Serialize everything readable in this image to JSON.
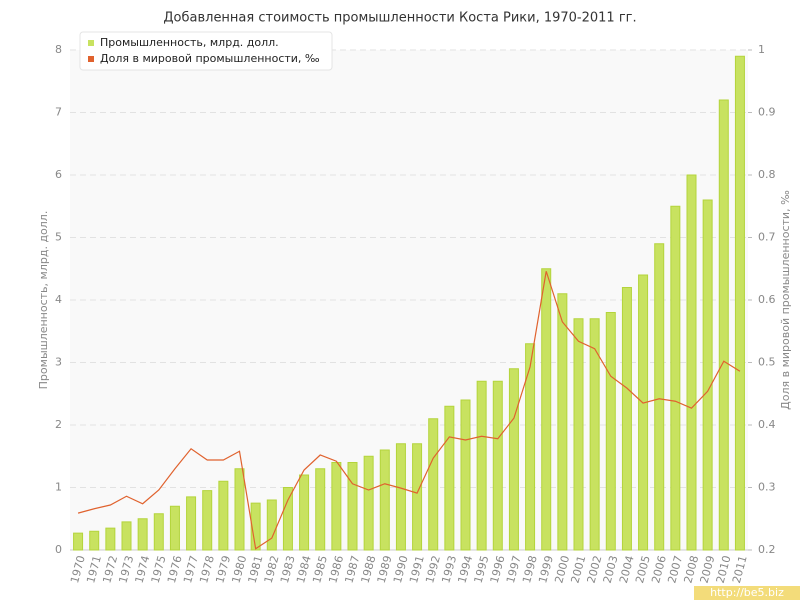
{
  "chart_data": {
    "type": "bar",
    "title": "Добавленная стоимость промышленности Коста Рики, 1970-2011 гг.",
    "y_label": "Промышленность, млрд. долл.",
    "y2_label": "Доля в мировой промышленности, ‰",
    "watermark": "http://be5.biz",
    "categories": [
      "1970",
      "1971",
      "1972",
      "1973",
      "1974",
      "1975",
      "1976",
      "1977",
      "1978",
      "1979",
      "1980",
      "1981",
      "1982",
      "1983",
      "1984",
      "1985",
      "1986",
      "1987",
      "1988",
      "1989",
      "1990",
      "1991",
      "1992",
      "1993",
      "1994",
      "1995",
      "1996",
      "1997",
      "1998",
      "1999",
      "2000",
      "2001",
      "2002",
      "2003",
      "2004",
      "2005",
      "2006",
      "2007",
      "2008",
      "2009",
      "2010",
      "2011"
    ],
    "series": [
      {
        "name": "Промышленность, млрд. долл.",
        "type": "bar",
        "color": "#c8e260",
        "values": [
          0.27,
          0.3,
          0.35,
          0.45,
          0.5,
          0.58,
          0.7,
          0.85,
          0.95,
          1.1,
          1.3,
          0.75,
          0.8,
          1.0,
          1.2,
          1.3,
          1.4,
          1.4,
          1.5,
          1.6,
          1.7,
          1.7,
          2.1,
          2.3,
          2.4,
          2.7,
          2.7,
          2.9,
          3.3,
          4.5,
          4.1,
          3.7,
          3.7,
          3.8,
          4.2,
          4.4,
          4.9,
          5.5,
          6.0,
          5.6,
          7.2,
          7.9
        ]
      },
      {
        "name": "Доля в мировой промышленности, ‰",
        "type": "line",
        "color": "#e0622e",
        "axis": "y2",
        "values": [
          0.259,
          0.266,
          0.272,
          0.286,
          0.274,
          0.296,
          0.33,
          0.362,
          0.344,
          0.344,
          0.358,
          0.202,
          0.219,
          0.28,
          0.328,
          0.352,
          0.342,
          0.306,
          0.296,
          0.306,
          0.299,
          0.291,
          0.347,
          0.381,
          0.376,
          0.382,
          0.378,
          0.411,
          0.493,
          0.646,
          0.565,
          0.534,
          0.522,
          0.478,
          0.459,
          0.435,
          0.442,
          0.438,
          0.427,
          0.454,
          0.502,
          0.486
        ]
      }
    ],
    "ylim": [
      0,
      8
    ],
    "yticks": [
      0,
      1,
      2,
      3,
      4,
      5,
      6,
      7,
      8
    ],
    "y2lim": [
      0.2,
      1
    ],
    "y2ticks": [
      0.2,
      0.3,
      0.4,
      0.5,
      0.6,
      0.7,
      0.8,
      0.9,
      1
    ],
    "grid": true,
    "legend": "top-left"
  }
}
